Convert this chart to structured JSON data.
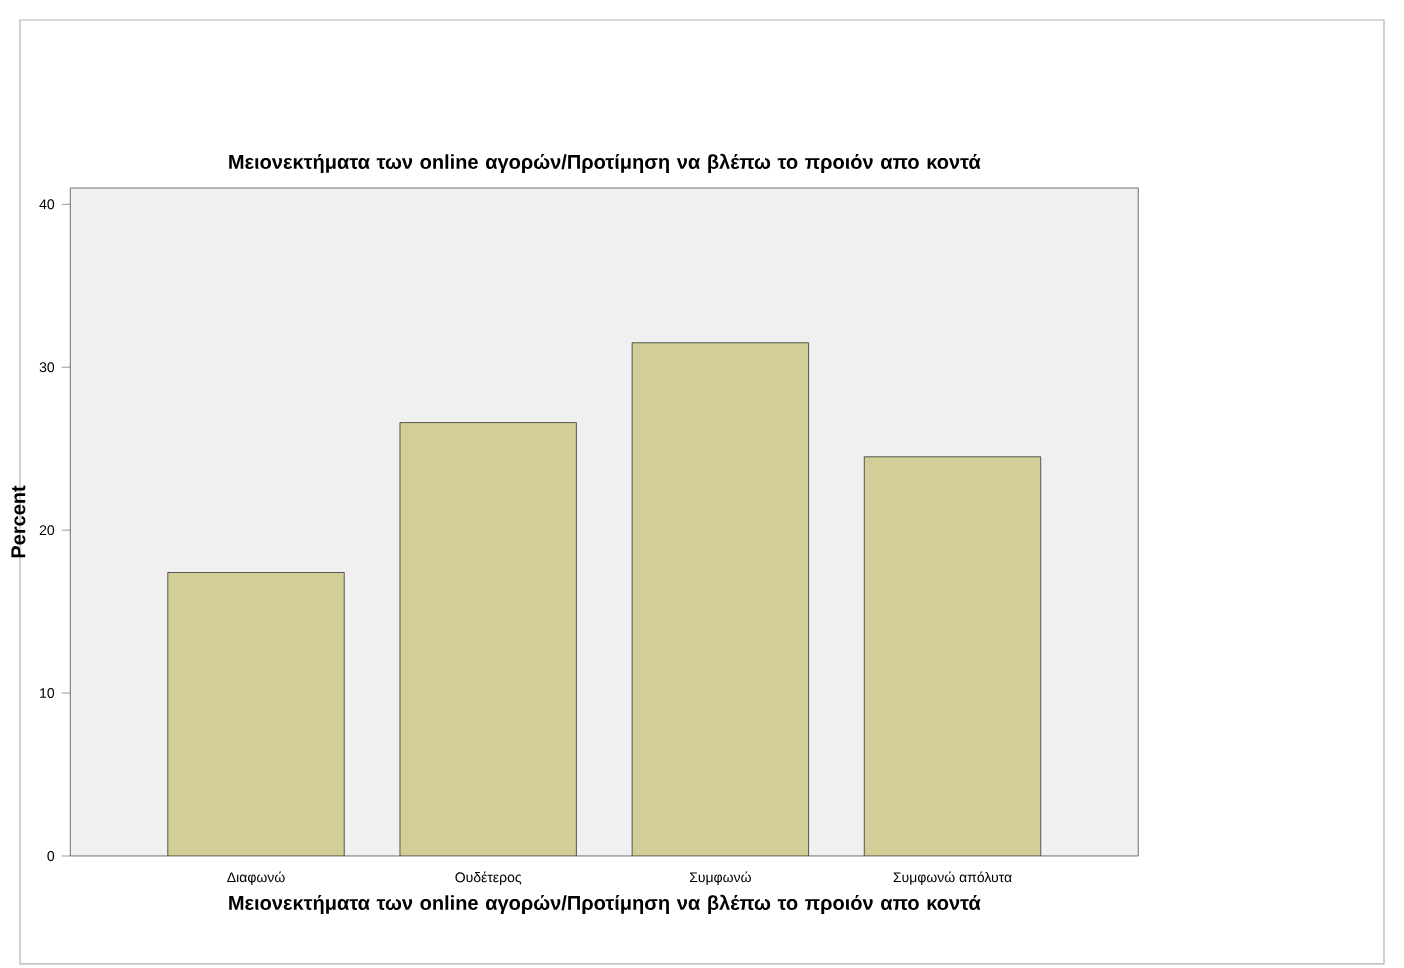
{
  "chart_data": {
    "type": "bar",
    "title": "Μειονεκτήματα των online αγορών/Προτίμηση να βλέπω το προιόν απο κοντά",
    "xlabel": "Μειονεκτήματα των online αγορών/Προτίμηση να βλέπω το προιόν απο κοντά",
    "ylabel": "Percent",
    "categories": [
      "Διαφωνώ",
      "Ουδέτερος",
      "Συμφωνώ",
      "Συμφωνώ απόλυτα"
    ],
    "values": [
      17.4,
      26.6,
      31.5,
      24.5
    ],
    "color": "#d3ce97",
    "ylim": [
      0,
      41
    ],
    "yticks": [
      0,
      10,
      20,
      30,
      40
    ],
    "grid": false
  }
}
